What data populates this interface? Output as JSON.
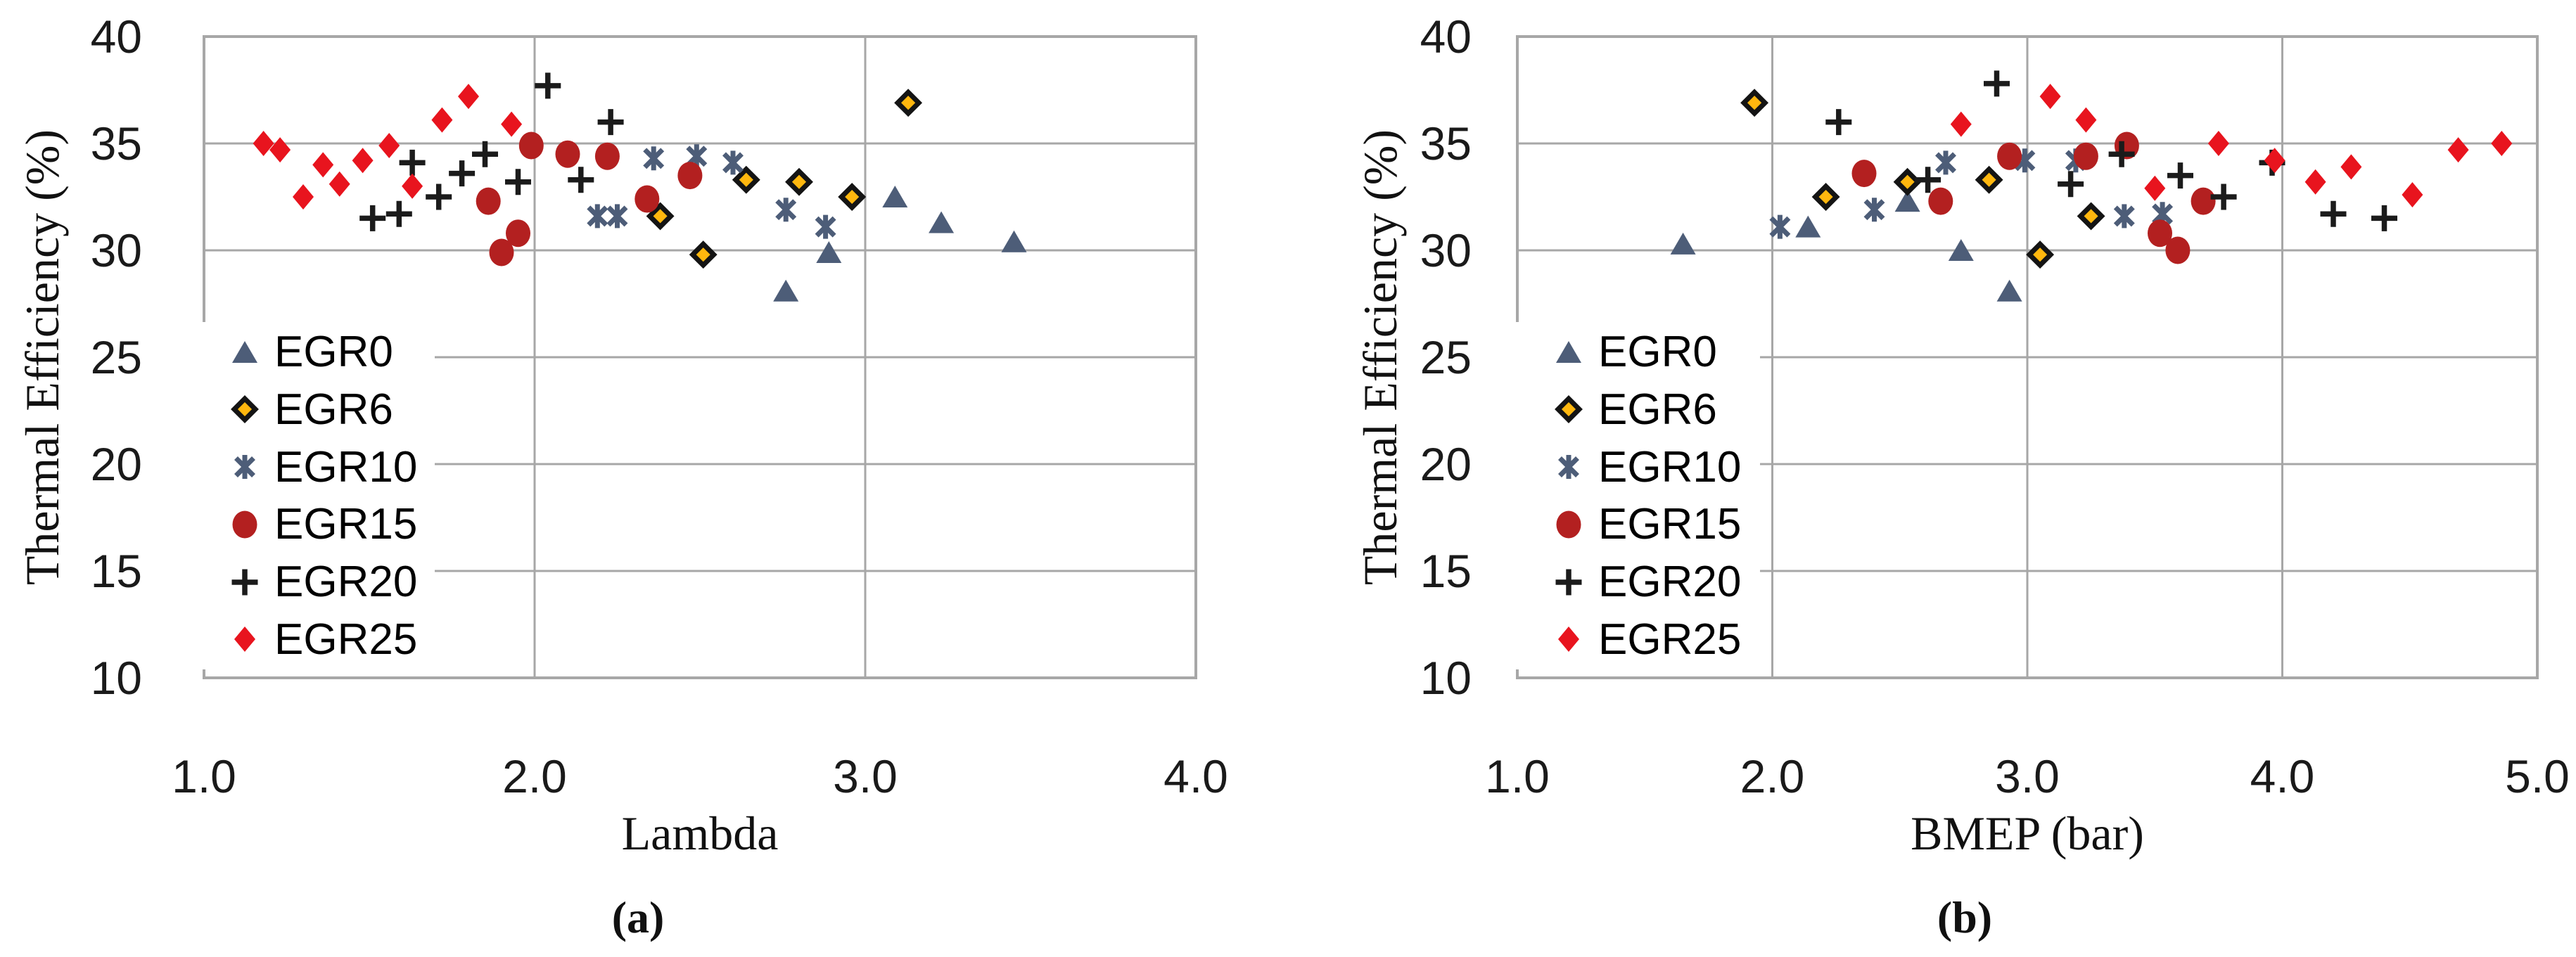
{
  "figure_type": "two-panel scatter figure",
  "y_tick_labels": [
    "40",
    "35",
    "30",
    "25",
    "20",
    "15",
    "10"
  ],
  "y_tick_values": [
    40,
    35,
    30,
    25,
    20,
    15,
    10
  ],
  "colors": {
    "egr0_slate": "#4D5D78",
    "egr6_gold": "#FFB70E",
    "egr6_outline": "#141414",
    "egr10_slate": "#4D5D78",
    "egr15_dark_red": "#B32020",
    "egr20_black": "#1B1B1B",
    "egr25_red": "#E8141E",
    "gridline_gray": "#A7A7A7",
    "tick_text": "#1A1A1A"
  },
  "chart_data": [
    {
      "type": "scatter",
      "caption": "(a)",
      "xlabel": "Lambda",
      "ylabel": "Thermal Efficiency (%)",
      "xlim": [
        1.0,
        4.0
      ],
      "ylim": [
        10,
        40
      ],
      "x_ticks": [
        "1.0",
        "2.0",
        "3.0",
        "4.0"
      ],
      "x_tick_values": [
        1.0,
        2.0,
        3.0,
        4.0
      ],
      "y_ticks": [
        "40",
        "35",
        "30",
        "25",
        "20",
        "15",
        "10"
      ],
      "grid": true,
      "legend_position": "inside-left",
      "series": [
        {
          "name": "EGR0",
          "marker": "triangle",
          "color": "#4D5D78",
          "points": [
            [
              2.76,
              28.1
            ],
            [
              2.89,
              29.9
            ],
            [
              3.09,
              32.5
            ],
            [
              3.23,
              31.3
            ],
            [
              3.45,
              30.4
            ]
          ]
        },
        {
          "name": "EGR6",
          "marker": "diamond-outlined",
          "color": "#FFB70E",
          "points": [
            [
              2.38,
              31.6
            ],
            [
              2.51,
              29.8
            ],
            [
              2.64,
              33.3
            ],
            [
              2.8,
              33.2
            ],
            [
              2.96,
              32.5
            ],
            [
              3.13,
              36.9
            ]
          ]
        },
        {
          "name": "EGR10",
          "marker": "asterisk",
          "color": "#4D5D78",
          "points": [
            [
              2.19,
              31.6
            ],
            [
              2.25,
              31.6
            ],
            [
              2.36,
              34.3
            ],
            [
              2.49,
              34.4
            ],
            [
              2.6,
              34.1
            ],
            [
              2.76,
              31.9
            ],
            [
              2.88,
              31.1
            ]
          ]
        },
        {
          "name": "EGR15",
          "marker": "circle",
          "color": "#B32020",
          "points": [
            [
              1.86,
              32.3
            ],
            [
              1.9,
              29.9
            ],
            [
              1.95,
              30.8
            ],
            [
              1.99,
              34.9
            ],
            [
              2.1,
              34.5
            ],
            [
              2.22,
              34.4
            ],
            [
              2.34,
              32.4
            ],
            [
              2.47,
              33.5
            ]
          ]
        },
        {
          "name": "EGR20",
          "marker": "plus",
          "color": "#1B1B1B",
          "points": [
            [
              1.51,
              31.5
            ],
            [
              1.59,
              31.7
            ],
            [
              1.63,
              34.1
            ],
            [
              1.71,
              32.5
            ],
            [
              1.78,
              33.6
            ],
            [
              1.85,
              34.5
            ],
            [
              1.95,
              33.2
            ],
            [
              2.04,
              37.7
            ],
            [
              2.14,
              33.3
            ],
            [
              2.23,
              36.0
            ]
          ]
        },
        {
          "name": "EGR25",
          "marker": "diamond",
          "color": "#E8141E",
          "points": [
            [
              1.18,
              35.0
            ],
            [
              1.23,
              34.7
            ],
            [
              1.3,
              32.5
            ],
            [
              1.36,
              34.0
            ],
            [
              1.41,
              33.1
            ],
            [
              1.48,
              34.2
            ],
            [
              1.56,
              34.9
            ],
            [
              1.63,
              33.0
            ],
            [
              1.72,
              36.1
            ],
            [
              1.8,
              37.2
            ],
            [
              1.93,
              35.9
            ]
          ]
        }
      ]
    },
    {
      "type": "scatter",
      "caption": "(b)",
      "xlabel": "BMEP (bar)",
      "ylabel": "Thermal Efficiency (%)",
      "xlim": [
        1.0,
        5.0
      ],
      "ylim": [
        10,
        40
      ],
      "x_ticks": [
        "1.0",
        "2.0",
        "3.0",
        "4.0",
        "5.0"
      ],
      "x_tick_values": [
        1.0,
        2.0,
        3.0,
        4.0,
        5.0
      ],
      "y_ticks": [
        "40",
        "35",
        "30",
        "25",
        "20",
        "15",
        "10"
      ],
      "grid": true,
      "legend_position": "inside-left",
      "series": [
        {
          "name": "EGR0",
          "marker": "triangle",
          "color": "#4D5D78",
          "points": [
            [
              1.65,
              30.3
            ],
            [
              2.14,
              31.1
            ],
            [
              2.53,
              32.3
            ],
            [
              2.74,
              30.0
            ],
            [
              2.93,
              28.1
            ]
          ]
        },
        {
          "name": "EGR6",
          "marker": "diamond-outlined",
          "color": "#FFB70E",
          "points": [
            [
              1.93,
              36.9
            ],
            [
              2.21,
              32.5
            ],
            [
              2.53,
              33.2
            ],
            [
              2.85,
              33.3
            ],
            [
              3.05,
              29.8
            ],
            [
              3.25,
              31.6
            ]
          ]
        },
        {
          "name": "EGR10",
          "marker": "asterisk",
          "color": "#4D5D78",
          "points": [
            [
              2.03,
              31.1
            ],
            [
              2.4,
              31.9
            ],
            [
              2.68,
              34.1
            ],
            [
              2.99,
              34.2
            ],
            [
              3.19,
              34.2
            ],
            [
              3.38,
              31.6
            ],
            [
              3.53,
              31.7
            ]
          ]
        },
        {
          "name": "EGR15",
          "marker": "circle",
          "color": "#B32020",
          "points": [
            [
              2.36,
              33.6
            ],
            [
              2.66,
              32.3
            ],
            [
              2.93,
              34.4
            ],
            [
              3.23,
              34.4
            ],
            [
              3.39,
              34.9
            ],
            [
              3.52,
              30.8
            ],
            [
              3.59,
              30.0
            ],
            [
              3.69,
              32.3
            ]
          ]
        },
        {
          "name": "EGR20",
          "marker": "plus",
          "color": "#1B1B1B",
          "points": [
            [
              2.26,
              36.0
            ],
            [
              2.61,
              33.3
            ],
            [
              2.88,
              37.8
            ],
            [
              3.17,
              33.1
            ],
            [
              3.37,
              34.5
            ],
            [
              3.6,
              33.5
            ],
            [
              3.77,
              32.5
            ],
            [
              3.96,
              34.1
            ],
            [
              4.2,
              31.7
            ],
            [
              4.4,
              31.5
            ]
          ]
        },
        {
          "name": "EGR25",
          "marker": "diamond",
          "color": "#E8141E",
          "points": [
            [
              2.74,
              35.9
            ],
            [
              3.09,
              37.2
            ],
            [
              3.23,
              36.1
            ],
            [
              3.5,
              32.9
            ],
            [
              3.75,
              35.0
            ],
            [
              3.97,
              34.2
            ],
            [
              4.13,
              33.2
            ],
            [
              4.27,
              33.9
            ],
            [
              4.51,
              32.6
            ],
            [
              4.69,
              34.7
            ],
            [
              4.86,
              35.0
            ]
          ]
        }
      ]
    }
  ]
}
